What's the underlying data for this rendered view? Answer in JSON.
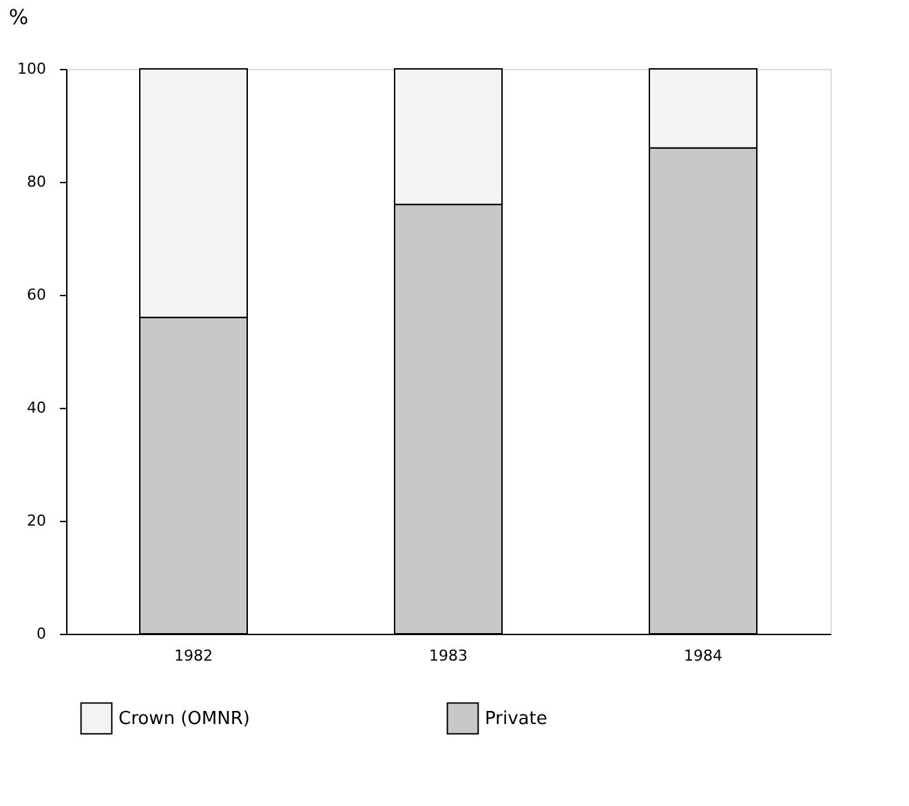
{
  "chart_data": {
    "type": "bar",
    "stacked": true,
    "ylabel": "%",
    "categories": [
      "1982",
      "1983",
      "1984"
    ],
    "series": [
      {
        "name": "Private",
        "color": "#c8c8c8",
        "values": [
          56,
          76,
          86
        ]
      },
      {
        "name": "Crown (OMNR)",
        "color": "#f4f4f4",
        "values": [
          44,
          24,
          14
        ]
      }
    ],
    "ylim": [
      0,
      100
    ],
    "yticks": [
      0,
      20,
      40,
      60,
      80,
      100
    ],
    "grid": false,
    "legend": "bottom"
  }
}
